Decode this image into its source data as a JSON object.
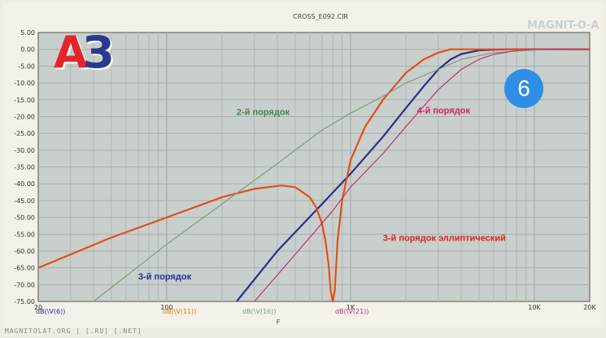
{
  "badge": "6",
  "logo": {
    "letter_a": "А",
    "letter_b": "З"
  },
  "watermark": "MAGNIT-O-A",
  "footer": "MAGNITOLAT.ORG | [.RU] [.NET]",
  "chart_data": {
    "type": "line",
    "title": "CROSS_E092.CIR",
    "xlabel": "F",
    "xscale": "log",
    "xlim": [
      20,
      20000
    ],
    "ylim": [
      -75,
      5
    ],
    "x_ticks": [
      {
        "v": 20,
        "label": "20"
      },
      {
        "v": 100,
        "label": "100"
      },
      {
        "v": 1000,
        "label": "1K"
      },
      {
        "v": 10000,
        "label": "10K"
      },
      {
        "v": 20000,
        "label": "20K"
      }
    ],
    "y_ticks": [
      "5.00",
      "0.00",
      "-5.00",
      "-10.00",
      "-15.00",
      "-20.00",
      "-25.00",
      "-30.00",
      "-35.00",
      "-40.00",
      "-45.00",
      "-50.00",
      "-55.00",
      "-60.00",
      "-65.00",
      "-70.00",
      "-75.00"
    ],
    "grid": true,
    "legend_entries": [
      {
        "label": "dB(\\V(6))",
        "color": "#2d2d8f"
      },
      {
        "label": "dB(\\V(11))",
        "color": "#e07a10"
      },
      {
        "label": "dB(\\V(16))",
        "color": "#7aa07a"
      },
      {
        "label": "dB(\\V(21))",
        "color": "#c2307a"
      }
    ],
    "series": [
      {
        "color": "#2d2d8f",
        "width": 2.2,
        "x": [
          240,
          400,
          700,
          1000,
          1500,
          2000,
          2500,
          3000,
          3500,
          4000,
          5000,
          7000,
          10000,
          20000
        ],
        "y": [
          -75,
          -60,
          -46,
          -37,
          -26,
          -17.5,
          -11,
          -6,
          -3,
          -1.4,
          -0.3,
          0,
          0,
          0
        ]
      },
      {
        "color": "#e05018",
        "width": 2.2,
        "x": [
          20,
          50,
          100,
          200,
          300,
          420,
          500,
          600,
          650,
          700,
          730,
          760,
          780,
          800,
          820,
          850,
          900,
          1000,
          1200,
          1500,
          2000,
          2500,
          3000,
          3500,
          4000,
          5000,
          7000,
          10000,
          20000
        ],
        "y": [
          -65,
          -56,
          -50,
          -44,
          -41.5,
          -40.5,
          -41,
          -44,
          -47,
          -52,
          -57,
          -64,
          -72,
          -75,
          -72,
          -57,
          -45,
          -33,
          -23,
          -15,
          -7,
          -3,
          -1,
          0,
          0,
          0,
          0,
          0,
          0
        ]
      },
      {
        "color": "#7aa07a",
        "width": 1.2,
        "x": [
          40,
          100,
          200,
          400,
          700,
          1000,
          1500,
          2000,
          3000,
          4000,
          6000,
          10000,
          20000
        ],
        "y": [
          -75,
          -58,
          -46,
          -34,
          -24,
          -19,
          -14,
          -10,
          -6,
          -3,
          -1,
          -0.2,
          0
        ]
      },
      {
        "color": "#c2307a",
        "width": 1.2,
        "x": [
          300,
          500,
          800,
          1000,
          1500,
          2000,
          3000,
          4000,
          5000,
          6000,
          8000,
          10000,
          20000
        ],
        "y": [
          -75,
          -61,
          -48,
          -41,
          -31,
          -23,
          -12,
          -6,
          -3,
          -1.5,
          -0.4,
          0,
          0
        ]
      }
    ],
    "annotations": [
      {
        "text": "2-й порядок",
        "color": "#3f8a4c",
        "x": 240,
        "y": -19.5
      },
      {
        "text": "4-й порядок",
        "color": "#d4246a",
        "x": 2300,
        "y": -19
      },
      {
        "text": "3-й порядок",
        "color": "#2a2f9a",
        "x": 70,
        "y": -68.5
      },
      {
        "text": "3-й порядок эллиптический",
        "color": "#d8251c",
        "x": 1500,
        "y": -57
      }
    ]
  }
}
